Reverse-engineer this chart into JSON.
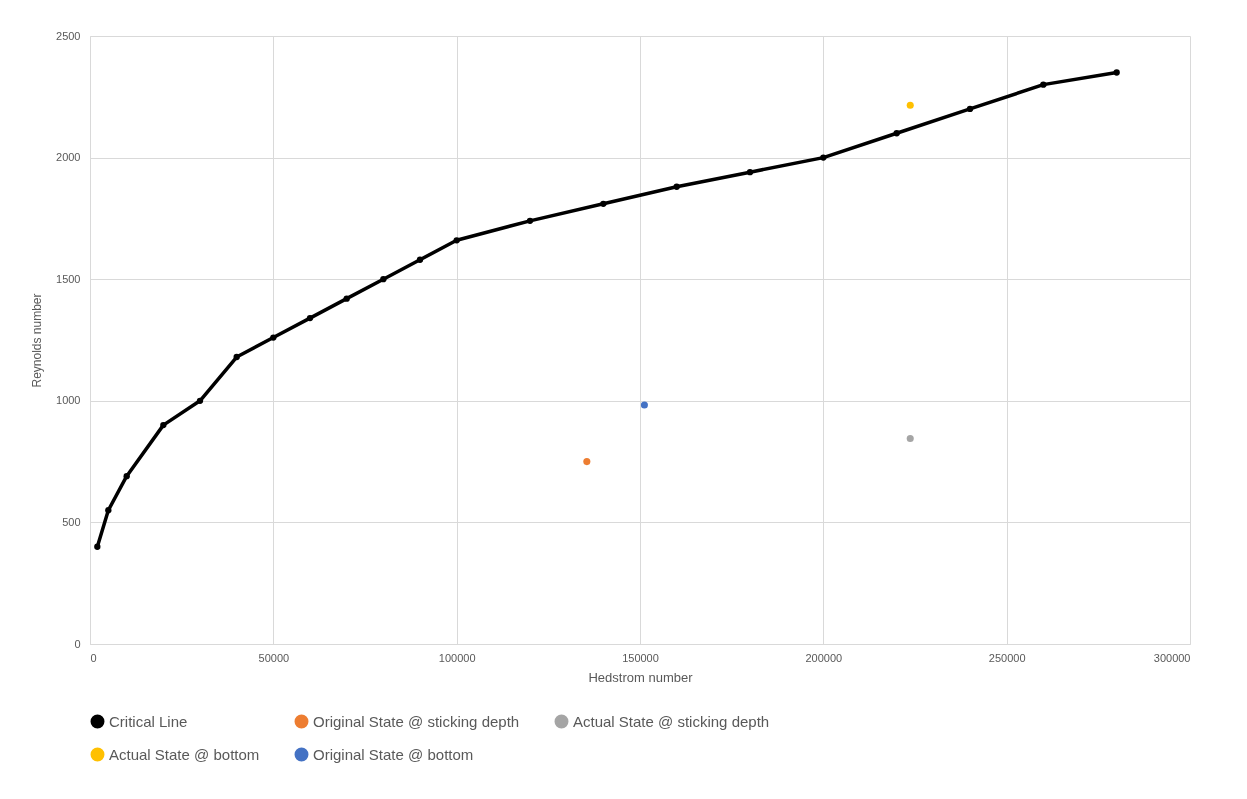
{
  "chart_data": {
    "type": "line",
    "xlabel": "Hedstrom number",
    "ylabel": "Reynolds number",
    "xlim": [
      0,
      300000
    ],
    "xticks": [
      0,
      50000,
      100000,
      150000,
      200000,
      250000,
      300000
    ],
    "ylim": [
      0,
      2500
    ],
    "yticks": [
      0,
      500,
      1000,
      1500,
      2000,
      2500
    ],
    "grid": true,
    "legend": "bottom",
    "marker": "circle",
    "series": [
      {
        "name": "Critical Line",
        "color": "#000000",
        "x": [
          2000,
          5000,
          10000,
          20000,
          30000,
          40000,
          50000,
          60000,
          70000,
          80000,
          90000,
          100000,
          120000,
          140000,
          160000,
          180000,
          200000,
          220000,
          240000,
          260000,
          280000
        ],
        "values": [
          400,
          550,
          690,
          900,
          1000,
          1180,
          1260,
          1340,
          1420,
          1500,
          1580,
          1660,
          1740,
          1810,
          1880,
          1940,
          2000,
          2100,
          2200,
          2300,
          2350
        ]
      },
      {
        "name": "Original State @ sticking depth",
        "type": "scatter",
        "color": "#ed7d31",
        "x": [
          135500
        ],
        "values": [
          750
        ]
      },
      {
        "name": "Actual State @ sticking depth",
        "type": "scatter",
        "color": "#a5a5a5",
        "x": [
          223700
        ],
        "values": [
          845
        ]
      },
      {
        "name": "Actual State @ bottom",
        "type": "scatter",
        "color": "#ffc000",
        "x": [
          223700
        ],
        "values": [
          2215
        ]
      },
      {
        "name": "Original State @ bottom",
        "type": "scatter",
        "color": "#4472c4",
        "x": [
          151200
        ],
        "values": [
          983
        ]
      }
    ]
  }
}
